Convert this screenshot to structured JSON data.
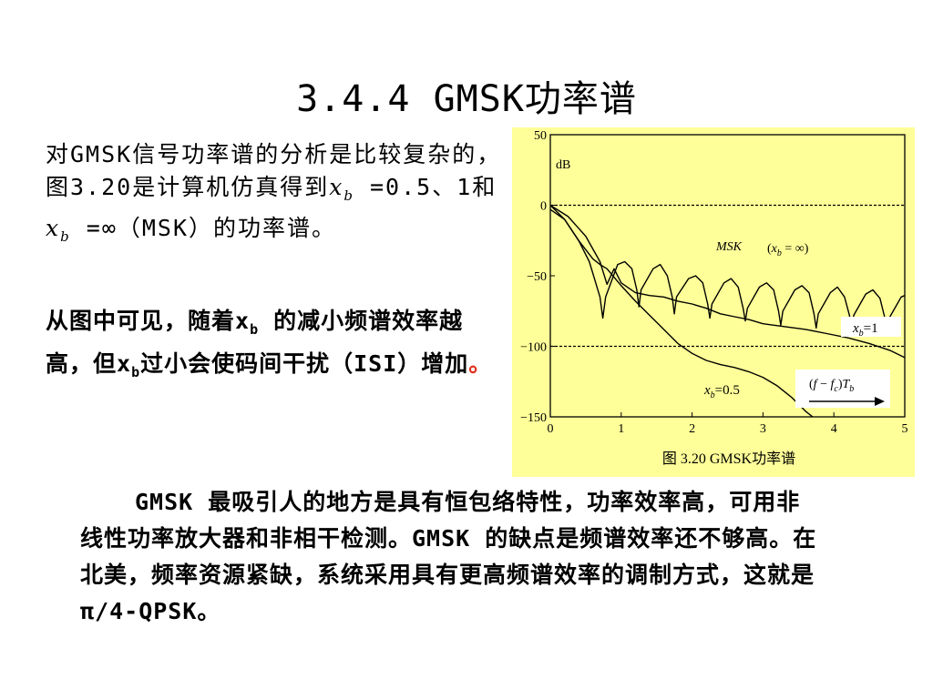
{
  "slide": {
    "title": "3.4.4 GMSK功率谱",
    "intro": {
      "pre": "对GMSK信号功率谱的分析是比较复杂的，图3.20是计算机仿真得到",
      "x1": "x",
      "b1": "b",
      "mid": " =0.5、1和",
      "x2": "x",
      "b2": "b",
      "post": " =∞（MSK）的功率谱。"
    },
    "observation": {
      "pre": "从图中可见，随着x",
      "sub": "b",
      "mid": " 的减小频谱效率越高，但x",
      "sub2": "b",
      "post": "过小会使码间干扰（ISI）增加",
      "end": "。"
    },
    "bottom_text": "GMSK 最吸引人的地方是具有恒包络特性，功率效率高，可用非线性功率放大器和非相干检测。GMSK 的缺点是频谱效率还不够高。在北美，频率资源紧缺，系统采用具有更高频谱效率的调制方式，这就是π/4-QPSK。"
  },
  "colors": {
    "chart_bg": "#ffff99",
    "accent_period": "#e0301e"
  },
  "chart_data": {
    "type": "line",
    "caption": "图 3.20  GMSK功率谱",
    "ylabel": "dB",
    "xlabel": "(f − fc)Tb",
    "xlim": [
      0,
      5
    ],
    "ylim": [
      -150,
      50
    ],
    "xticks": [
      0,
      1,
      2,
      3,
      4,
      5
    ],
    "yticks": [
      50,
      0,
      -50,
      -100,
      -150
    ],
    "ytick_labels": [
      "50",
      "0",
      "−50",
      "−100",
      "−150"
    ],
    "reference_lines": [
      0,
      -100
    ],
    "series": [
      {
        "name": "MSK (xb = ∞)",
        "x": [
          0,
          0.2,
          0.4,
          0.55,
          0.7,
          0.74,
          0.78,
          0.95,
          1.05,
          1.15,
          1.22,
          1.25,
          1.28,
          1.45,
          1.55,
          1.65,
          1.72,
          1.75,
          1.78,
          1.95,
          2.05,
          2.15,
          2.22,
          2.25,
          2.28,
          2.45,
          2.55,
          2.65,
          2.72,
          2.75,
          2.78,
          2.95,
          3.05,
          3.15,
          3.22,
          3.25,
          3.28,
          3.45,
          3.55,
          3.65,
          3.72,
          3.75,
          3.78,
          3.95,
          4.05,
          4.15,
          4.22,
          4.25,
          4.28,
          4.45,
          4.55,
          4.65,
          4.72,
          4.75,
          4.78,
          4.95,
          5.0
        ],
        "y": [
          -3,
          -10,
          -25,
          -40,
          -65,
          -80,
          -65,
          -42,
          -40,
          -45,
          -60,
          -72,
          -60,
          -45,
          -42,
          -50,
          -65,
          -77,
          -65,
          -52,
          -50,
          -55,
          -70,
          -80,
          -70,
          -55,
          -52,
          -58,
          -73,
          -82,
          -73,
          -58,
          -55,
          -60,
          -75,
          -85,
          -75,
          -60,
          -57,
          -62,
          -77,
          -87,
          -77,
          -62,
          -58,
          -65,
          -78,
          -88,
          -78,
          -63,
          -60,
          -66,
          -80,
          -89,
          -80,
          -65,
          -64
        ]
      },
      {
        "name": "xb=1",
        "x": [
          0,
          0.25,
          0.5,
          0.7,
          0.8,
          0.9,
          1.0,
          1.2,
          1.4,
          1.6,
          1.8,
          2.0,
          2.2,
          2.4,
          2.6,
          2.8,
          3.0,
          3.3,
          3.6,
          3.9,
          4.2,
          4.5,
          4.8,
          5.0
        ],
        "y": [
          0,
          -8,
          -22,
          -40,
          -56,
          -45,
          -55,
          -62,
          -64,
          -65,
          -68,
          -70,
          -73,
          -77,
          -79,
          -81,
          -84,
          -86,
          -88,
          -91,
          -94,
          -98,
          -103,
          -108
        ]
      },
      {
        "name": "xb=0.5",
        "x": [
          0,
          0.2,
          0.4,
          0.6,
          0.7,
          0.8,
          1.0,
          1.2,
          1.4,
          1.6,
          1.8,
          2.0,
          2.2,
          2.4,
          2.6,
          2.8,
          3.0,
          3.2,
          3.4,
          3.6,
          3.7
        ],
        "y": [
          0,
          -10,
          -25,
          -38,
          -42,
          -45,
          -57,
          -68,
          -78,
          -88,
          -98,
          -105,
          -110,
          -113,
          -115,
          -118,
          -122,
          -128,
          -136,
          -146,
          -150
        ]
      }
    ],
    "annotations": [
      "MSK",
      "(xb = ∞)",
      "xb=1",
      "xb=0.5"
    ]
  }
}
